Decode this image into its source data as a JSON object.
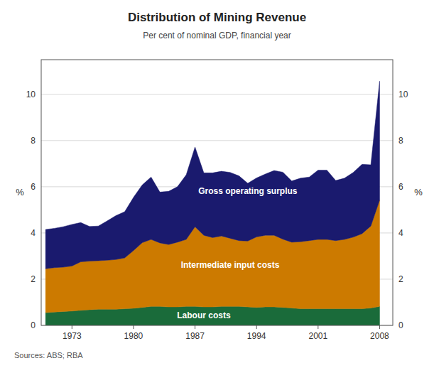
{
  "chart_data": {
    "type": "area",
    "stacked": true,
    "title": "Distribution of Mining Revenue",
    "subtitle": "Per cent of nominal GDP, financial year",
    "ylabel": "%",
    "y2label": "%",
    "source": "Sources: ABS; RBA",
    "xlim": [
      1969.5,
      2009.5
    ],
    "ylim": [
      0,
      11.5
    ],
    "yticks": [
      0,
      2,
      4,
      6,
      8,
      10
    ],
    "y2lim": [
      0,
      11.5
    ],
    "y2ticks": [
      0,
      2,
      4,
      6,
      8,
      10
    ],
    "xticks": [
      1973,
      1980,
      1987,
      1994,
      2001,
      2008
    ],
    "grid": true,
    "legend": false,
    "x": [
      1970,
      1971,
      1972,
      1973,
      1974,
      1975,
      1976,
      1977,
      1978,
      1979,
      1980,
      1981,
      1982,
      1983,
      1984,
      1985,
      1986,
      1987,
      1988,
      1989,
      1990,
      1991,
      1992,
      1993,
      1994,
      1995,
      1996,
      1997,
      1998,
      1999,
      2000,
      2001,
      2002,
      2003,
      2004,
      2005,
      2006,
      2007,
      2008
    ],
    "series": [
      {
        "color": "#1a6b3a",
        "values": [
          0.55,
          0.58,
          0.6,
          0.62,
          0.65,
          0.68,
          0.7,
          0.7,
          0.7,
          0.72,
          0.74,
          0.78,
          0.82,
          0.82,
          0.8,
          0.8,
          0.82,
          0.82,
          0.8,
          0.8,
          0.82,
          0.82,
          0.82,
          0.8,
          0.78,
          0.8,
          0.8,
          0.78,
          0.75,
          0.72,
          0.72,
          0.72,
          0.72,
          0.72,
          0.72,
          0.72,
          0.72,
          0.75,
          0.82
        ]
      },
      {
        "color": "#cc7a00",
        "values": [
          1.9,
          1.92,
          1.92,
          1.95,
          2.1,
          2.1,
          2.1,
          2.12,
          2.15,
          2.2,
          2.5,
          2.8,
          2.9,
          2.75,
          2.7,
          2.8,
          2.9,
          3.45,
          3.1,
          3.0,
          3.05,
          2.95,
          2.85,
          2.85,
          3.05,
          3.1,
          3.1,
          2.95,
          2.85,
          2.9,
          2.95,
          3.0,
          3.0,
          2.95,
          3.0,
          3.1,
          3.25,
          3.55,
          4.6
        ]
      },
      {
        "color": "#1a1a6e",
        "values": [
          1.7,
          1.7,
          1.75,
          1.8,
          1.7,
          1.5,
          1.5,
          1.7,
          1.9,
          2.0,
          2.3,
          2.5,
          2.7,
          2.2,
          2.3,
          2.4,
          2.8,
          3.45,
          2.7,
          2.8,
          2.8,
          2.85,
          2.8,
          2.5,
          2.55,
          2.65,
          2.8,
          2.9,
          2.65,
          2.75,
          2.75,
          3.0,
          3.0,
          2.6,
          2.65,
          2.8,
          3.0,
          2.65,
          5.15
        ]
      }
    ],
    "annotations": [
      {
        "text": "Gross operating surplus",
        "x": 1993,
        "y": 5.8
      },
      {
        "text": "Intermediate input costs",
        "x": 1991,
        "y": 2.6
      },
      {
        "text": "Labour costs",
        "x": 1988,
        "y": 0.42
      }
    ]
  }
}
